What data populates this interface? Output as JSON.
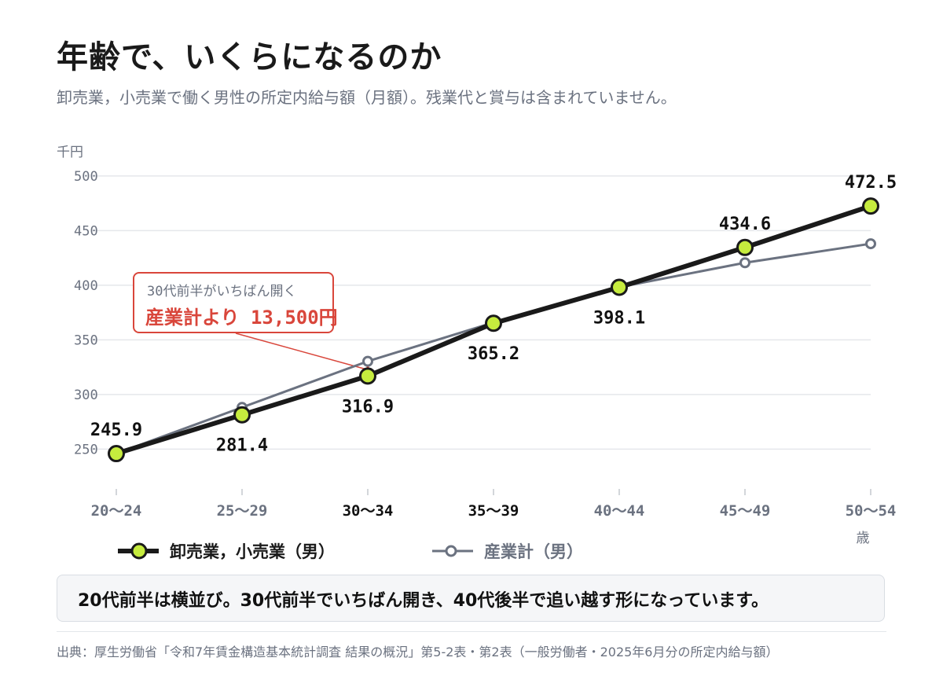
{
  "title": "年齢で、いくらになるのか",
  "subtitle": "卸売業，小売業で働く男性の所定内給与額（月額）。残業代と賞与は含まれていません。",
  "callout": {
    "line1": "30代前半がいちばん開く",
    "line2": "産業計より 13,500円"
  },
  "summary": "20代前半は横並び。30代前半でいちばん開き、40代後半で追い越す形になっています。",
  "source": "出典：厚生労働省「令和7年賃金構造基本統計調査 結果の概況」第5-2表・第2表（一般労働者・2025年6月分の所定内給与額）",
  "colors": {
    "main_line": "#1a1a1a",
    "main_marker": "#c6ec3e",
    "compare_line": "#6b7280",
    "accent": "#d9463b",
    "grid": "#e5e7eb",
    "axis_text": "#6b7280"
  },
  "chart_data": {
    "type": "line",
    "ylabel": "千円",
    "xlabel": "歳",
    "ylim": [
      215,
      510
    ],
    "yticks": [
      "250",
      "300",
      "350",
      "400",
      "450",
      "500"
    ],
    "categories": [
      "20〜24",
      "25〜29",
      "30〜34",
      "35〜39",
      "40〜44",
      "45〜49",
      "50〜54"
    ],
    "highlight_categories": [
      2,
      3
    ],
    "grid": true,
    "legend_placement": "bottom-left",
    "series": [
      {
        "name": "卸売業，小売業（男）",
        "values": [
          245.9,
          281.4,
          316.9,
          365.2,
          398.1,
          434.6,
          472.5
        ],
        "labels": [
          "245.9",
          "281.4",
          "316.9",
          "365.2",
          "398.1",
          "434.6",
          "472.5"
        ],
        "label_side": [
          "above",
          "below",
          "below",
          "below",
          "below",
          "above",
          "above"
        ]
      },
      {
        "name": "産業計（男）",
        "values": [
          245.9,
          288.2,
          330.4,
          365.9,
          398.3,
          420.6,
          438.0
        ]
      }
    ]
  }
}
